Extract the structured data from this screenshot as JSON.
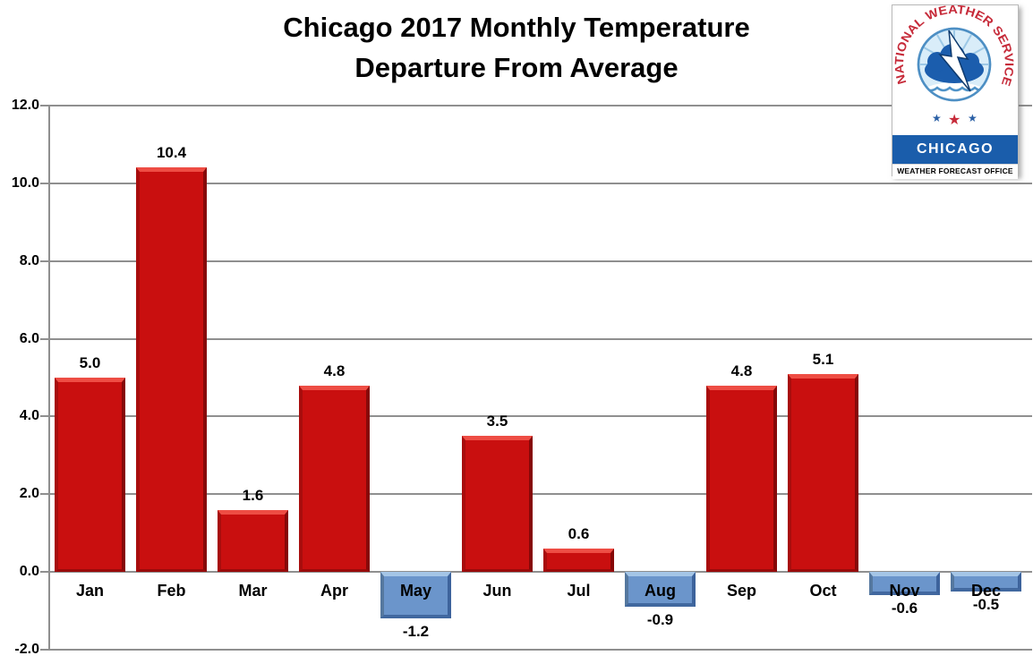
{
  "title": {
    "line1": "Chicago 2017 Monthly Temperature",
    "line2": "Departure From Average"
  },
  "logo": {
    "org": "NATIONAL WEATHER SERVICE",
    "office": "CHICAGO",
    "sub": "WEATHER FORECAST OFFICE"
  },
  "chart_data": {
    "type": "bar",
    "title": "Chicago 2017 Monthly Temperature Departure From Average",
    "categories": [
      "Jan",
      "Feb",
      "Mar",
      "Apr",
      "May",
      "Jun",
      "Jul",
      "Aug",
      "Sep",
      "Oct",
      "Nov",
      "Dec"
    ],
    "values": [
      5.0,
      10.4,
      1.6,
      4.8,
      -1.2,
      3.5,
      0.6,
      -0.9,
      4.8,
      5.1,
      -0.6,
      -0.5
    ],
    "value_labels": [
      "5.0",
      "10.4",
      "1.6",
      "4.8",
      "-1.2",
      "3.5",
      "0.6",
      "-0.9",
      "4.8",
      "5.1",
      "-0.6",
      "-0.5"
    ],
    "xlabel": "",
    "ylabel": "",
    "ylim": [
      -2.0,
      12.0
    ],
    "ytick_step": 2.0,
    "yticks": [
      "12.0",
      "10.0",
      "8.0",
      "6.0",
      "4.0",
      "2.0",
      "0.0",
      "-2.0"
    ],
    "grid": true,
    "legend": "none",
    "colors": {
      "positive_bar": "#c90f0f",
      "negative_bar": "#6b95cb",
      "gridline": "#8f8f8f",
      "text": "#000000",
      "logo_band": "#1a5dab",
      "logo_text_red": "#c62a39",
      "logo_blue": "#1b5dad"
    }
  }
}
